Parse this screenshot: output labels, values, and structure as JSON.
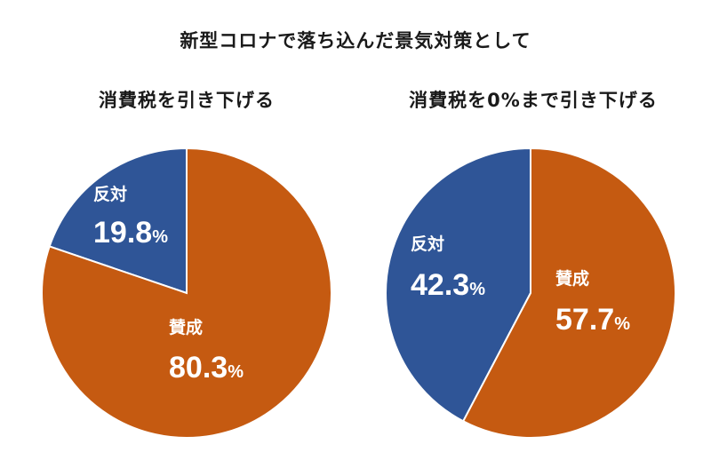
{
  "title": "新型コロナで落ち込んだ景気対策として",
  "colors": {
    "favor": "#c55a11",
    "oppose": "#2f5597"
  },
  "chart_data": [
    {
      "type": "pie",
      "title": "消費税を引き下げる",
      "slices": [
        {
          "label": "反対",
          "value_text": "19.8",
          "unit": "%",
          "value": 19.8,
          "color": "#2f5597"
        },
        {
          "label": "賛成",
          "value_text": "80.3",
          "unit": "%",
          "value": 80.3,
          "color": "#c55a11"
        }
      ]
    },
    {
      "type": "pie",
      "title": "消費税を0%まで引き下げる",
      "slices": [
        {
          "label": "反対",
          "value_text": "42.3",
          "unit": "%",
          "value": 42.3,
          "color": "#2f5597"
        },
        {
          "label": "賛成",
          "value_text": "57.7",
          "unit": "%",
          "value": 57.7,
          "color": "#c55a11"
        }
      ]
    }
  ]
}
